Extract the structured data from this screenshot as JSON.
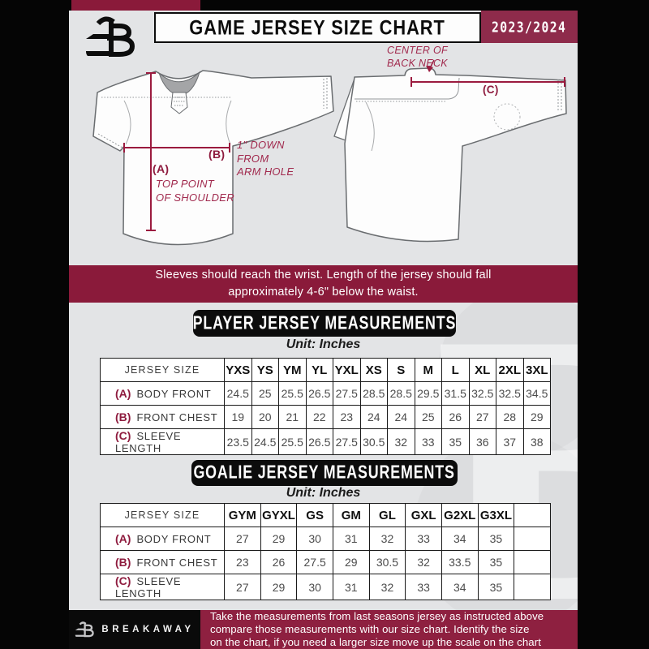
{
  "header": {
    "title": "GAME JERSEY SIZE CHART",
    "season": "2023/2024",
    "logo": "breakaway-b-logo"
  },
  "diagram": {
    "front": {
      "a_key": "(A)",
      "a_label": "TOP POINT\nOF SHOULDER",
      "b_key": "(B)",
      "b_label": "1\" DOWN\nFROM\nARM HOLE"
    },
    "back": {
      "c_key": "(C)",
      "c_label": "CENTER OF\nBACK NECK"
    }
  },
  "notice": "Sleeves should reach the wrist. Length of the jersey should fall\napproximately 4-6\" below the waist.",
  "player": {
    "title": "PLAYER JERSEY MEASUREMENTS",
    "unit": "Unit: Inches",
    "size_label": "JERSEY SIZE",
    "columns": [
      "YXS",
      "YS",
      "YM",
      "YL",
      "YXL",
      "XS",
      "S",
      "M",
      "L",
      "XL",
      "2XL",
      "3XL"
    ],
    "rows": [
      {
        "key": "(A)",
        "label": "BODY FRONT",
        "values": [
          "24.5",
          "25",
          "25.5",
          "26.5",
          "27.5",
          "28.5",
          "28.5",
          "29.5",
          "31.5",
          "32.5",
          "32.5",
          "34.5"
        ]
      },
      {
        "key": "(B)",
        "label": "FRONT CHEST",
        "values": [
          "19",
          "20",
          "21",
          "22",
          "23",
          "24",
          "24",
          "25",
          "26",
          "27",
          "28",
          "29"
        ]
      },
      {
        "key": "(C)",
        "label": "SLEEVE LENGTH",
        "values": [
          "23.5",
          "24.5",
          "25.5",
          "26.5",
          "27.5",
          "30.5",
          "32",
          "33",
          "35",
          "36",
          "37",
          "38"
        ]
      }
    ]
  },
  "goalie": {
    "title": "GOALIE JERSEY MEASUREMENTS",
    "unit": "Unit: Inches",
    "size_label": "JERSEY SIZE",
    "columns": [
      "GYM",
      "GYXL",
      "GS",
      "GM",
      "GL",
      "GXL",
      "G2XL",
      "G3XL",
      ""
    ],
    "rows": [
      {
        "key": "(A)",
        "label": "BODY FRONT",
        "values": [
          "27",
          "29",
          "30",
          "31",
          "32",
          "33",
          "34",
          "35",
          ""
        ]
      },
      {
        "key": "(B)",
        "label": "FRONT CHEST",
        "values": [
          "23",
          "26",
          "27.5",
          "29",
          "30.5",
          "32",
          "33.5",
          "35",
          ""
        ]
      },
      {
        "key": "(C)",
        "label": "SLEEVE LENGTH",
        "values": [
          "27",
          "29",
          "30",
          "31",
          "32",
          "33",
          "34",
          "35",
          ""
        ]
      }
    ]
  },
  "footer": {
    "brand": "BREAKAWAY",
    "note": "Take the measurements from last seasons jersey as instructed above\ncompare those measurements  with our size chart. Identify the size\non the chart, if you need a larger size move up the scale on the chart"
  },
  "colors": {
    "maroon_banner": "#8a1a3a",
    "season_box": "#8e2b4b",
    "footer_maroon": "#8e2040",
    "pill_black": "#0c0c0c",
    "background_gray": "#e3e4e6",
    "measurement_line": "#9b1b3f"
  }
}
